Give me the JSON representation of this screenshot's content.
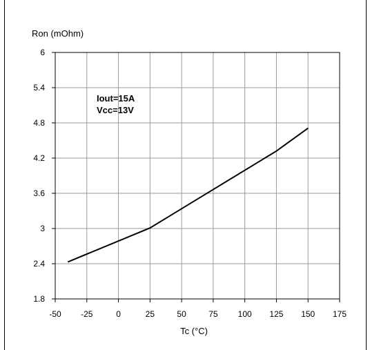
{
  "chart_data": {
    "type": "line",
    "ylabel": "Ron (mOhm)",
    "xlabel": "Tc (°C)",
    "xlim": [
      -50,
      175
    ],
    "ylim": [
      1.8,
      6
    ],
    "xticks": [
      -50,
      -25,
      0,
      25,
      50,
      75,
      100,
      125,
      150,
      175
    ],
    "xtick_labels": [
      "-50",
      "-25",
      "0",
      "25",
      "50",
      "75",
      "100",
      "125",
      "150",
      "175"
    ],
    "yticks": [
      1.8,
      2.4,
      3,
      3.6,
      4.2,
      4.8,
      5.4,
      6
    ],
    "ytick_labels": [
      "1.8",
      "2.4",
      "3",
      "3.6",
      "4.2",
      "4.8",
      "5.4",
      "6"
    ],
    "grid": true,
    "annotations": [
      "Iout=15A",
      "Vcc=13V"
    ],
    "series": [
      {
        "x": [
          -40,
          25,
          125,
          150
        ],
        "y": [
          2.43,
          3.01,
          4.32,
          4.71
        ]
      }
    ]
  }
}
